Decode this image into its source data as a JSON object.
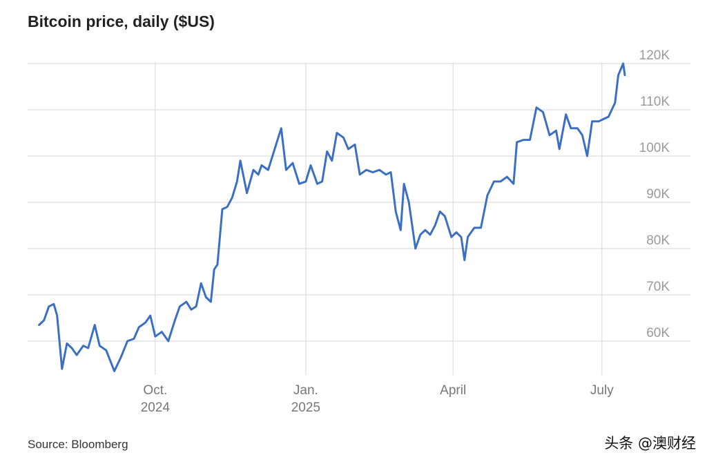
{
  "source": "Source: Bloomberg",
  "watermark": "头条 @澳财经",
  "colors": {
    "line": "#3a6fc4",
    "grid": "#dddddd"
  },
  "chart_data": {
    "type": "line",
    "title": "Bitcoin price, daily ($US)",
    "xlabel": "",
    "ylabel": "",
    "x_range": [
      "2024-07-15",
      "2025-07-15"
    ],
    "ylim": [
      53000,
      122000
    ],
    "y_ticks": [
      {
        "value": 60000,
        "label": "60K"
      },
      {
        "value": 70000,
        "label": "70K"
      },
      {
        "value": 80000,
        "label": "80K"
      },
      {
        "value": 90000,
        "label": "90K"
      },
      {
        "value": 100000,
        "label": "100K"
      },
      {
        "value": 110000,
        "label": "110K"
      },
      {
        "value": 120000,
        "label": "120K"
      }
    ],
    "x_ticks": [
      {
        "date": "2024-10-01",
        "label": "Oct.",
        "label2": "2024"
      },
      {
        "date": "2025-01-01",
        "label": "Jan.",
        "label2": "2025"
      },
      {
        "date": "2025-04-01",
        "label": "April",
        "label2": ""
      },
      {
        "date": "2025-07-01",
        "label": "July",
        "label2": ""
      }
    ],
    "grid": true,
    "series": [
      {
        "points": [
          [
            "2024-07-22",
            63500
          ],
          [
            "2024-07-25",
            64500
          ],
          [
            "2024-07-28",
            67500
          ],
          [
            "2024-07-31",
            68000
          ],
          [
            "2024-08-02",
            65500
          ],
          [
            "2024-08-05",
            54000
          ],
          [
            "2024-08-08",
            59500
          ],
          [
            "2024-08-11",
            58500
          ],
          [
            "2024-08-14",
            57000
          ],
          [
            "2024-08-18",
            59000
          ],
          [
            "2024-08-21",
            58500
          ],
          [
            "2024-08-25",
            63500
          ],
          [
            "2024-08-28",
            59000
          ],
          [
            "2024-09-01",
            58000
          ],
          [
            "2024-09-06",
            53500
          ],
          [
            "2024-09-10",
            56500
          ],
          [
            "2024-09-14",
            60000
          ],
          [
            "2024-09-18",
            60500
          ],
          [
            "2024-09-21",
            63000
          ],
          [
            "2024-09-25",
            64000
          ],
          [
            "2024-09-28",
            65500
          ],
          [
            "2024-10-01",
            61000
          ],
          [
            "2024-10-05",
            62000
          ],
          [
            "2024-10-09",
            60000
          ],
          [
            "2024-10-13",
            64500
          ],
          [
            "2024-10-16",
            67500
          ],
          [
            "2024-10-20",
            68500
          ],
          [
            "2024-10-23",
            66800
          ],
          [
            "2024-10-26",
            67500
          ],
          [
            "2024-10-29",
            72500
          ],
          [
            "2024-11-01",
            69500
          ],
          [
            "2024-11-04",
            68500
          ],
          [
            "2024-11-06",
            75500
          ],
          [
            "2024-11-08",
            76500
          ],
          [
            "2024-11-11",
            88500
          ],
          [
            "2024-11-14",
            89000
          ],
          [
            "2024-11-17",
            91000
          ],
          [
            "2024-11-20",
            94500
          ],
          [
            "2024-11-22",
            99000
          ],
          [
            "2024-11-26",
            92000
          ],
          [
            "2024-11-30",
            97000
          ],
          [
            "2024-12-03",
            96000
          ],
          [
            "2024-12-05",
            98000
          ],
          [
            "2024-12-09",
            97000
          ],
          [
            "2024-12-13",
            101500
          ],
          [
            "2024-12-17",
            106000
          ],
          [
            "2024-12-20",
            97000
          ],
          [
            "2024-12-24",
            98500
          ],
          [
            "2024-12-28",
            94000
          ],
          [
            "2025-01-01",
            94500
          ],
          [
            "2025-01-04",
            98000
          ],
          [
            "2025-01-08",
            94000
          ],
          [
            "2025-01-11",
            94500
          ],
          [
            "2025-01-14",
            101000
          ],
          [
            "2025-01-17",
            99000
          ],
          [
            "2025-01-20",
            105000
          ],
          [
            "2025-01-24",
            104000
          ],
          [
            "2025-01-27",
            101500
          ],
          [
            "2025-01-31",
            102500
          ],
          [
            "2025-02-03",
            96000
          ],
          [
            "2025-02-07",
            97000
          ],
          [
            "2025-02-11",
            96500
          ],
          [
            "2025-02-15",
            97000
          ],
          [
            "2025-02-19",
            96000
          ],
          [
            "2025-02-22",
            96500
          ],
          [
            "2025-02-25",
            88000
          ],
          [
            "2025-02-28",
            84000
          ],
          [
            "2025-03-02",
            94000
          ],
          [
            "2025-03-05",
            90000
          ],
          [
            "2025-03-09",
            80000
          ],
          [
            "2025-03-12",
            83000
          ],
          [
            "2025-03-15",
            84000
          ],
          [
            "2025-03-18",
            83000
          ],
          [
            "2025-03-21",
            85000
          ],
          [
            "2025-03-24",
            88000
          ],
          [
            "2025-03-27",
            87000
          ],
          [
            "2025-03-31",
            82500
          ],
          [
            "2025-04-03",
            83500
          ],
          [
            "2025-04-06",
            82500
          ],
          [
            "2025-04-08",
            77500
          ],
          [
            "2025-04-10",
            82500
          ],
          [
            "2025-04-14",
            84500
          ],
          [
            "2025-04-18",
            84500
          ],
          [
            "2025-04-22",
            91500
          ],
          [
            "2025-04-26",
            94500
          ],
          [
            "2025-04-30",
            94500
          ],
          [
            "2025-05-04",
            95500
          ],
          [
            "2025-05-08",
            94000
          ],
          [
            "2025-05-10",
            103000
          ],
          [
            "2025-05-14",
            103500
          ],
          [
            "2025-05-18",
            103500
          ],
          [
            "2025-05-22",
            110500
          ],
          [
            "2025-05-26",
            109500
          ],
          [
            "2025-05-30",
            104500
          ],
          [
            "2025-06-03",
            105500
          ],
          [
            "2025-06-05",
            101500
          ],
          [
            "2025-06-09",
            109000
          ],
          [
            "2025-06-12",
            106000
          ],
          [
            "2025-06-16",
            106000
          ],
          [
            "2025-06-19",
            104500
          ],
          [
            "2025-06-22",
            100000
          ],
          [
            "2025-06-25",
            107500
          ],
          [
            "2025-06-29",
            107500
          ],
          [
            "2025-07-02",
            108000
          ],
          [
            "2025-07-05",
            108500
          ],
          [
            "2025-07-09",
            111500
          ],
          [
            "2025-07-11",
            117500
          ],
          [
            "2025-07-14",
            120000
          ],
          [
            "2025-07-15",
            117500
          ]
        ]
      }
    ]
  }
}
